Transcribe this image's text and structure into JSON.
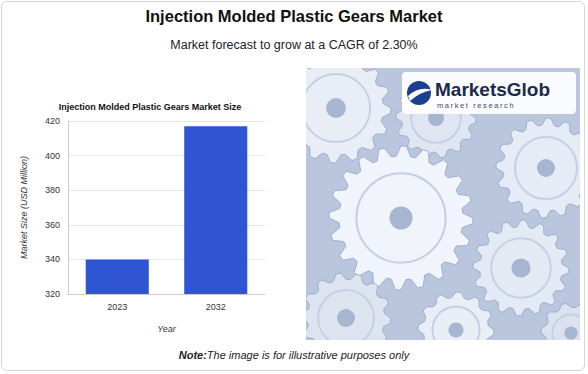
{
  "header": {
    "title": "Injection Molded Plastic Gears Market",
    "subtitle": "Market forecast to grow at a CAGR of 2.30%"
  },
  "chart_data": {
    "type": "bar",
    "title": "Injection Molded Plastic Gears Market Size",
    "x_label": "Year",
    "y_label": "Market Size (USD Million)",
    "categories": [
      "2023",
      "2032"
    ],
    "values": [
      340,
      417
    ],
    "color": "#2f55d4",
    "ylim": [
      320,
      420
    ],
    "yticks": [
      320,
      340,
      360,
      380,
      400,
      420
    ],
    "grid": true
  },
  "image": {
    "logo": "MarketsGlob",
    "logo_subtitle": "market research"
  },
  "note": {
    "label": "Note:",
    "text": "The image is for illustrative purposes only"
  }
}
